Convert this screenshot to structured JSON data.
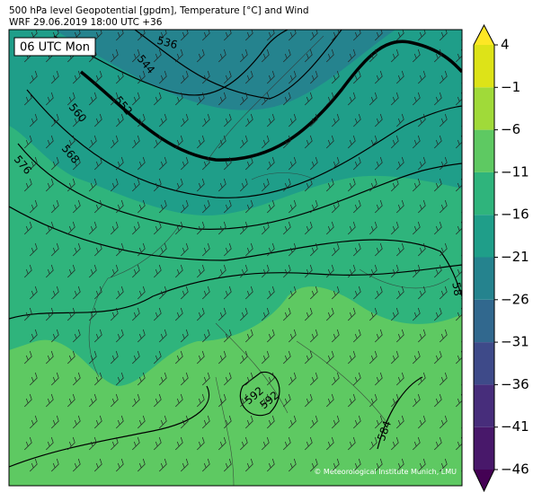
{
  "header": {
    "title": "500 hPa level Geopotential [gpdm], Temperature [°C] and Wind",
    "subtitle": "WRF 29.06.2019 18:00 UTC +36"
  },
  "map": {
    "time_label": "06 UTC Mon",
    "contour_labels": [
      "536",
      "544",
      "552",
      "560",
      "568",
      "576",
      "592",
      "592",
      "584",
      "58"
    ],
    "credit": "© Meteorological Institute Munich, LMU"
  },
  "colorbar": {
    "range": [
      -46,
      4
    ],
    "ticks": [
      4,
      {
        "value": -1,
        "label": "−1"
      },
      {
        "value": -6,
        "label": "−6"
      },
      {
        "value": -11,
        "label": "−11"
      },
      {
        "value": -16,
        "label": "−16"
      },
      {
        "value": -21,
        "label": "−21"
      },
      {
        "value": -26,
        "label": "−26"
      },
      {
        "value": -31,
        "label": "−31"
      },
      {
        "value": -36,
        "label": "−36"
      },
      {
        "value": -41,
        "label": "−41"
      },
      {
        "value": -46,
        "label": "−46"
      }
    ],
    "colors": [
      "#48186a",
      "#472d7b",
      "#3e4a89",
      "#31688e",
      "#25838e",
      "#1f9e89",
      "#2fb47c",
      "#5ec962",
      "#a0da39",
      "#dde318"
    ],
    "extend_colors": [
      "#440154",
      "#fde725"
    ]
  }
}
